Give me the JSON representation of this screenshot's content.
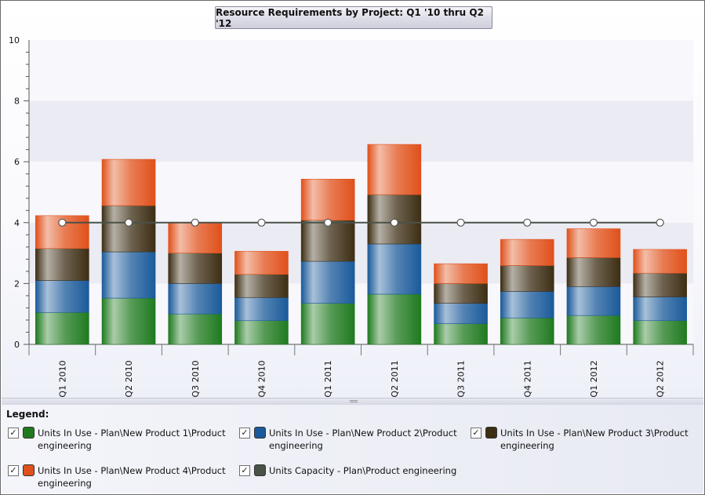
{
  "legend": {
    "title": "Legend:",
    "items": [
      {
        "label": "Units In Use - Plan\\New Product 1\\Product engineering",
        "color": "#1f7a1f",
        "checked": "✓"
      },
      {
        "label": "Units In Use - Plan\\New Product 2\\Product engineering",
        "color": "#1a5a9a",
        "checked": "✓"
      },
      {
        "label": "Units In Use - Plan\\New Product 3\\Product engineering",
        "color": "#3d2e14",
        "checked": "✓"
      },
      {
        "label": "Units In Use - Plan\\New Product 4\\Product engineering",
        "color": "#e0501a",
        "checked": "✓"
      },
      {
        "label": "Units Capacity - Plan\\Product engineering",
        "color": "#4a5248",
        "checked": "✓"
      }
    ]
  },
  "chart_data": {
    "type": "bar",
    "stacked": true,
    "title": "Resource Requirements by Project: Q1 '10 thru Q2 '12",
    "xlabel": "",
    "ylabel": "",
    "ylim": [
      0,
      10
    ],
    "yticks": [
      "0",
      "2",
      "4",
      "6",
      "8",
      "10"
    ],
    "categories": [
      "Q1 2010",
      "Q2 2010",
      "Q3 2010",
      "Q4 2010",
      "Q1 2011",
      "Q2 2011",
      "Q3 2011",
      "Q4 2011",
      "Q1 2012",
      "Q2 2012"
    ],
    "series": [
      {
        "name": "Units In Use - Plan\\New Product 1\\Product engineering",
        "color": "#1f7a1f",
        "values": [
          1.05,
          1.52,
          1.0,
          0.78,
          1.35,
          1.65,
          0.68,
          0.87,
          0.95,
          0.78
        ]
      },
      {
        "name": "Units In Use - Plan\\New Product 2\\Product engineering",
        "color": "#1a5a9a",
        "values": [
          1.05,
          1.52,
          1.0,
          0.76,
          1.38,
          1.65,
          0.67,
          0.87,
          0.95,
          0.78
        ]
      },
      {
        "name": "Units In Use - Plan\\New Product 3\\Product engineering",
        "color": "#3d2e14",
        "values": [
          1.05,
          1.52,
          1.0,
          0.76,
          1.35,
          1.62,
          0.65,
          0.85,
          0.95,
          0.78
        ]
      },
      {
        "name": "Units In Use - Plan\\New Product 4\\Product engineering",
        "color": "#e0501a",
        "values": [
          1.08,
          1.52,
          1.0,
          0.76,
          1.35,
          1.65,
          0.65,
          0.86,
          0.95,
          0.78
        ]
      }
    ],
    "line_series": {
      "name": "Units Capacity - Plan\\Product engineering",
      "color": "#4a5248",
      "values": [
        4,
        4,
        4,
        4,
        4,
        4,
        4,
        4,
        4,
        4
      ]
    }
  }
}
